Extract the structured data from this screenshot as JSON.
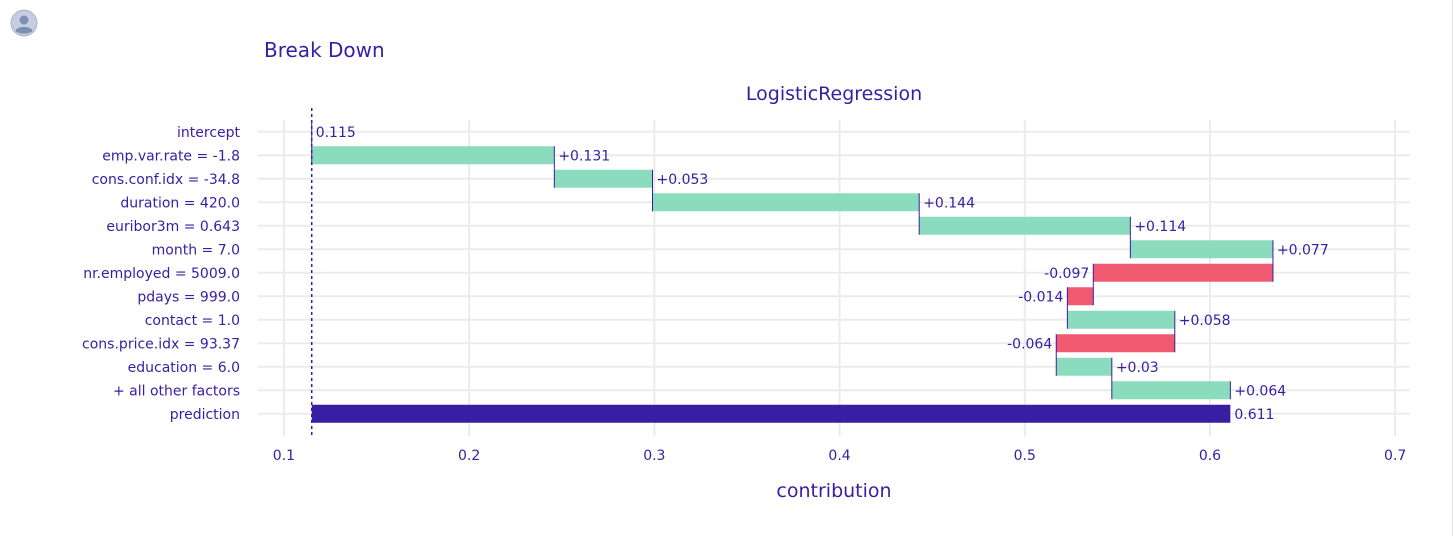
{
  "header": {
    "title": "Break Down",
    "avatar_icon": "user-avatar-icon"
  },
  "colors": {
    "positive": "#8bdcbe",
    "negative": "#f05a71",
    "prediction": "#371ea3",
    "text": "#371ea3",
    "grid": "#ebebeb"
  },
  "chart_data": {
    "type": "bar",
    "subtitle": "LogisticRegression",
    "xlabel": "contribution",
    "xlim": [
      0.086,
      0.708
    ],
    "xticks": [
      0.1,
      0.2,
      0.3,
      0.4,
      0.5,
      0.6,
      0.7
    ],
    "xtick_labels": [
      "0.1",
      "0.2",
      "0.3",
      "0.4",
      "0.5",
      "0.6",
      "0.7"
    ],
    "baseline": 0.115,
    "grid": true,
    "rows": [
      {
        "variable": "intercept",
        "start": 0.115,
        "end": 0.115,
        "label": "0.115",
        "sign": "zero"
      },
      {
        "variable": "emp.var.rate = -1.8",
        "start": 0.115,
        "end": 0.246,
        "label": "+0.131",
        "sign": "positive"
      },
      {
        "variable": "cons.conf.idx = -34.8",
        "start": 0.246,
        "end": 0.299,
        "label": "+0.053",
        "sign": "positive"
      },
      {
        "variable": "duration = 420.0",
        "start": 0.299,
        "end": 0.443,
        "label": "+0.144",
        "sign": "positive"
      },
      {
        "variable": "euribor3m = 0.643",
        "start": 0.443,
        "end": 0.557,
        "label": "+0.114",
        "sign": "positive"
      },
      {
        "variable": "month = 7.0",
        "start": 0.557,
        "end": 0.634,
        "label": "+0.077",
        "sign": "positive"
      },
      {
        "variable": "nr.employed = 5009.0",
        "start": 0.634,
        "end": 0.537,
        "label": "-0.097",
        "sign": "negative"
      },
      {
        "variable": "pdays = 999.0",
        "start": 0.537,
        "end": 0.523,
        "label": "-0.014",
        "sign": "negative"
      },
      {
        "variable": "contact = 1.0",
        "start": 0.523,
        "end": 0.581,
        "label": "+0.058",
        "sign": "positive"
      },
      {
        "variable": "cons.price.idx = 93.37",
        "start": 0.581,
        "end": 0.517,
        "label": "-0.064",
        "sign": "negative"
      },
      {
        "variable": "education = 6.0",
        "start": 0.517,
        "end": 0.547,
        "label": "+0.03",
        "sign": "positive"
      },
      {
        "variable": "+ all other factors",
        "start": 0.547,
        "end": 0.611,
        "label": "+0.064",
        "sign": "positive"
      },
      {
        "variable": "prediction",
        "start": 0.115,
        "end": 0.611,
        "label": "0.611",
        "sign": "prediction"
      }
    ]
  }
}
